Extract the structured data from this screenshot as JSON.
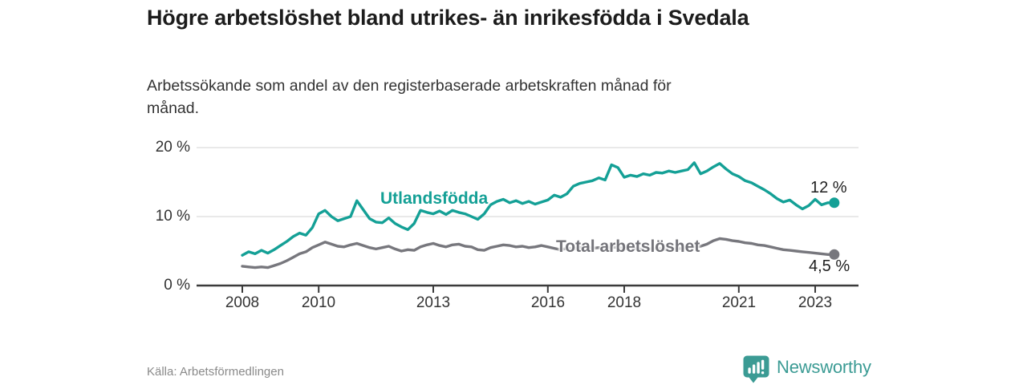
{
  "header": {
    "title": "Högre arbetslöshet bland utrikes- än inrikesfödda i Svedala",
    "subtitle": "Arbetssökande som andel av den registerbaserade arbetskraften månad för månad."
  },
  "footer": {
    "source": "Källa: Arbetsförmedlingen",
    "brand": "Newsworthy",
    "brand_icon": "newsworthy-bubble-bar-chart-icon",
    "brand_color": "#3b9b94"
  },
  "chart_data": {
    "type": "line",
    "title": "Högre arbetslöshet bland utrikes- än inrikesfödda i Svedala",
    "xlabel": "",
    "ylabel": "",
    "x_unit": "decimal_year",
    "x_start": 2008.0,
    "x_step_years": 0.1666667,
    "xlim": [
      2006.8,
      2024.1
    ],
    "ylim": [
      0,
      20
    ],
    "grid": "horizontal",
    "legend_position": "inline-labels",
    "y_ticks": [
      {
        "value": 0,
        "label": "0 %"
      },
      {
        "value": 10,
        "label": "10 %"
      },
      {
        "value": 20,
        "label": "20 %"
      }
    ],
    "x_ticks": [
      {
        "value": 2008,
        "label": "2008"
      },
      {
        "value": 2010,
        "label": "2010"
      },
      {
        "value": 2013,
        "label": "2013"
      },
      {
        "value": 2016,
        "label": "2016"
      },
      {
        "value": 2018,
        "label": "2018"
      },
      {
        "value": 2021,
        "label": "2021"
      },
      {
        "value": 2023,
        "label": "2023"
      }
    ],
    "series": [
      {
        "name": "Utlandsfödda",
        "color": "#14a096",
        "end_label": "12 %",
        "end_value": 12,
        "values": [
          4.4,
          4.9,
          4.6,
          5.1,
          4.7,
          5.2,
          5.8,
          6.4,
          7.1,
          7.6,
          7.3,
          8.4,
          10.4,
          10.9,
          10.0,
          9.4,
          9.7,
          10.0,
          12.3,
          11.0,
          9.7,
          9.2,
          9.1,
          9.8,
          9.0,
          8.5,
          8.1,
          9.0,
          10.9,
          10.6,
          10.4,
          10.8,
          10.3,
          10.9,
          10.6,
          10.4,
          10.0,
          9.6,
          10.4,
          11.7,
          12.2,
          12.5,
          12.0,
          12.3,
          11.9,
          12.2,
          11.8,
          12.1,
          12.4,
          13.1,
          12.8,
          13.3,
          14.4,
          14.8,
          15.0,
          15.2,
          15.6,
          15.3,
          17.5,
          17.1,
          15.7,
          16.0,
          15.8,
          16.2,
          16.0,
          16.4,
          16.3,
          16.6,
          16.4,
          16.6,
          16.8,
          17.8,
          16.2,
          16.6,
          17.2,
          17.7,
          16.9,
          16.2,
          15.8,
          15.2,
          14.9,
          14.4,
          13.9,
          13.3,
          12.6,
          12.1,
          12.4,
          11.7,
          11.1,
          11.6,
          12.5,
          11.7,
          12.0,
          12.0
        ]
      },
      {
        "name": "Total arbetslöshet",
        "color": "#77777d",
        "end_label": "4,5 %",
        "end_value": 4.5,
        "values": [
          2.8,
          2.7,
          2.6,
          2.7,
          2.6,
          2.9,
          3.2,
          3.6,
          4.1,
          4.6,
          4.9,
          5.5,
          5.9,
          6.3,
          6.0,
          5.7,
          5.6,
          5.9,
          6.1,
          5.8,
          5.5,
          5.3,
          5.5,
          5.7,
          5.3,
          5.0,
          5.2,
          5.1,
          5.6,
          5.9,
          6.1,
          5.8,
          5.6,
          5.9,
          6.0,
          5.7,
          5.6,
          5.2,
          5.1,
          5.5,
          5.7,
          5.9,
          5.8,
          5.6,
          5.7,
          5.5,
          5.6,
          5.8,
          5.6,
          5.4,
          5.2,
          5.4,
          5.3,
          5.5,
          5.6,
          5.4,
          5.5,
          5.3,
          5.6,
          5.5,
          5.4,
          5.3,
          5.4,
          5.2,
          5.3,
          5.4,
          5.3,
          5.2,
          5.3,
          5.4,
          5.5,
          5.6,
          5.7,
          6.0,
          6.5,
          6.8,
          6.7,
          6.5,
          6.4,
          6.2,
          6.1,
          5.9,
          5.8,
          5.6,
          5.4,
          5.2,
          5.1,
          5.0,
          4.9,
          4.8,
          4.7,
          4.6,
          4.5,
          4.5
        ]
      }
    ]
  }
}
